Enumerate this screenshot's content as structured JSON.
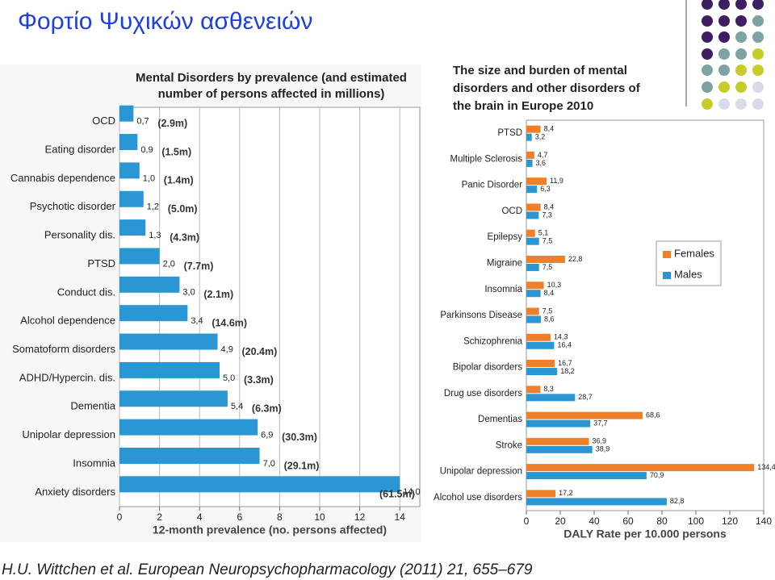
{
  "slide": {
    "title": "Φορτίο Ψυχικών ασθενειών",
    "heading": [
      "The size and burden of mental",
      "disorders and other disorders of",
      "the brain in Europe 2010"
    ],
    "citation": "H.U. Wittchen et al. European Neuropsychopharmacology (2011) 21, 655–679"
  },
  "chart_data": [
    {
      "type": "bar",
      "orientation": "horizontal",
      "title": [
        "Mental Disorders by prevalence (and estimated",
        "number of persons affected in millions)"
      ],
      "xlabel": "12-month prevalence (no. persons affected)",
      "categories": [
        "OCD",
        "Eating disorder",
        "Cannabis dependence",
        "Psychotic disorder",
        "Personality dis.",
        "PTSD",
        "Conduct dis.",
        "Alcohol dependence",
        "Somatoform disorders",
        "ADHD/Hypercin. dis.",
        "Dementia",
        "Unipolar depression",
        "Insomnia",
        "Anxiety disorders"
      ],
      "values": [
        0.7,
        0.9,
        1.0,
        1.2,
        1.3,
        2.0,
        3.0,
        3.4,
        4.9,
        5.0,
        5.4,
        6.9,
        7.0,
        14.0
      ],
      "value_labels": [
        "0,7",
        "0,9",
        "1,0",
        "1,2",
        "1,3",
        "2,0",
        "3,0",
        "3,4",
        "4,9",
        "5,0",
        "5,4",
        "6,9",
        "7,0",
        "14,0"
      ],
      "annotations": [
        "(2.9m)",
        "(1.5m)",
        "(1.4m)",
        "(5.0m)",
        "(4.3m)",
        "(7.7m)",
        "(2.1m)",
        "(14.6m)",
        "(20.4m)",
        "(3.3m)",
        "(6.3m)",
        "(30.3m)",
        "(29.1m)",
        "(61.5m)"
      ],
      "color": "#2a97d4",
      "xlim": [
        0,
        15
      ],
      "xticks": [
        0,
        2,
        4,
        6,
        8,
        10,
        12,
        14
      ],
      "grid": true
    },
    {
      "type": "bar",
      "orientation": "horizontal",
      "xlabel": "DALY Rate per 10.000 persons",
      "categories": [
        "PTSD",
        "Multiple Sclerosis",
        "Panic Disorder",
        "OCD",
        "Epilepsy",
        "Migraine",
        "Insomnia",
        "Parkinsons Disease",
        "Schizophrenia",
        "Bipolar disorders",
        "Drug use disorders",
        "Dementias",
        "Stroke",
        "Unipolar depression",
        "Alcohol use disorders"
      ],
      "series": [
        {
          "name": "Females",
          "color": "#f07f2a",
          "values": [
            8.4,
            4.7,
            11.9,
            8.4,
            5.1,
            22.8,
            10.3,
            7.5,
            14.3,
            16.7,
            8.3,
            68.6,
            36.9,
            134.4,
            17.2
          ],
          "value_labels": [
            "8,4",
            "4,7",
            "11,9",
            "8,4",
            "5,1",
            "22,8",
            "10,3",
            "7,5",
            "14,3",
            "16,7",
            "8,3",
            "68,6",
            "36,9",
            "134,4",
            "17,2"
          ]
        },
        {
          "name": "Males",
          "color": "#2a97d4",
          "values": [
            3.2,
            3.6,
            6.3,
            7.3,
            7.5,
            7.5,
            8.4,
            8.6,
            16.4,
            18.2,
            28.7,
            37.7,
            38.9,
            70.9,
            82.8
          ],
          "value_labels": [
            "3,2",
            "3,6",
            "6,3",
            "7,3",
            "7,5",
            "7,5",
            "8,4",
            "8,6",
            "16,4",
            "18,2",
            "28,7",
            "37,7",
            "38,9",
            "70,9",
            "82,8"
          ]
        }
      ],
      "xlim": [
        0,
        140
      ],
      "xticks": [
        0,
        20,
        40,
        60,
        80,
        100,
        120,
        140
      ],
      "grid": false,
      "legend": "right"
    }
  ]
}
